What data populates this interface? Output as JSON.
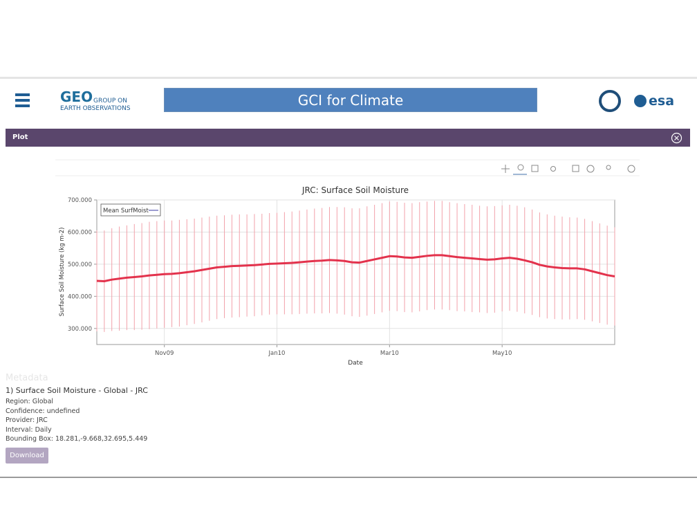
{
  "header": {
    "logo_text": "GEO",
    "logo_caption": [
      "GROUP ON",
      "EARTH OBSERVATIONS"
    ],
    "title": "GCI for Climate",
    "partner_logo": "esa"
  },
  "panel": {
    "title": "Plot"
  },
  "chart_data": {
    "type": "line",
    "title": "JRC: Surface Soil Moisture",
    "x_label": "Date",
    "y_label": "Surface Soil Moisture (kg m-2)",
    "categories": [
      null,
      null,
      null,
      null,
      null,
      null,
      null,
      null,
      null,
      "Nov09",
      null,
      null,
      null,
      null,
      null,
      null,
      null,
      null,
      null,
      null,
      null,
      null,
      null,
      null,
      "Jan10",
      null,
      null,
      null,
      null,
      null,
      null,
      null,
      null,
      null,
      null,
      null,
      null,
      null,
      null,
      "Mar10",
      null,
      null,
      null,
      null,
      null,
      null,
      null,
      null,
      null,
      null,
      null,
      null,
      null,
      null,
      "May10",
      null,
      null,
      null,
      null,
      null,
      null,
      null,
      null,
      null,
      null,
      null,
      null,
      null,
      null,
      null
    ],
    "series": [
      {
        "name": "Mean SurfMoist",
        "color": "#e3324c",
        "error_color": "#f2a1aa",
        "values": [
          448,
          447,
          452,
          455,
          458,
          460,
          462,
          465,
          467,
          469,
          470,
          472,
          475,
          478,
          482,
          486,
          490,
          492,
          494,
          495,
          496,
          497,
          499,
          501,
          502,
          503,
          504,
          506,
          508,
          510,
          511,
          513,
          512,
          510,
          506,
          505,
          510,
          515,
          520,
          525,
          524,
          521,
          520,
          523,
          526,
          528,
          528,
          525,
          522,
          520,
          518,
          516,
          514,
          515,
          518,
          520,
          517,
          512,
          506,
          498,
          493,
          490,
          488,
          487,
          487,
          484,
          478,
          472,
          466,
          462
        ],
        "errors": [
          157,
          158,
          160,
          162,
          163,
          165,
          166,
          167,
          167,
          167,
          166,
          166,
          165,
          164,
          163,
          162,
          161,
          160,
          160,
          160,
          159,
          159,
          158,
          158,
          158,
          159,
          160,
          161,
          162,
          163,
          164,
          165,
          166,
          167,
          168,
          169,
          170,
          170,
          170,
          170,
          170,
          170,
          170,
          170,
          169,
          169,
          169,
          168,
          168,
          167,
          167,
          166,
          166,
          166,
          165,
          165,
          165,
          165,
          164,
          163,
          162,
          161,
          160,
          159,
          158,
          157,
          156,
          155,
          154,
          153
        ]
      }
    ],
    "ylim": [
      250,
      700
    ],
    "yticks": [
      {
        "value": 300,
        "label": "300.000"
      },
      {
        "value": 400,
        "label": "400.000"
      },
      {
        "value": 500,
        "label": "500.000"
      },
      {
        "value": 600,
        "label": "600.000"
      },
      {
        "value": 700,
        "label": "700.000"
      }
    ],
    "grid": true,
    "legend": "top-left"
  },
  "metadata": {
    "heading": "Metadata",
    "dataset": "1) Surface Soil Moisture - Global - JRC",
    "details": [
      "Region: Global",
      "Confidence: undefined",
      "Provider: JRC",
      "Interval: Daily",
      "Bounding Box: 18.281,-9.668,32.695,5.449"
    ],
    "download": "Download"
  }
}
